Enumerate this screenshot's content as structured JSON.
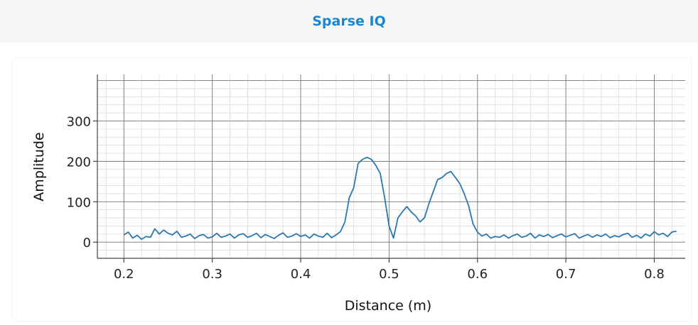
{
  "app": {
    "title": "Sparse IQ"
  },
  "chart_data": {
    "type": "line",
    "title": "",
    "xlabel": "Distance (m)",
    "ylabel": "Amplitude",
    "xlim": [
      0.17,
      0.835
    ],
    "ylim": [
      -40,
      415
    ],
    "xticks": [
      0.2,
      0.3,
      0.4,
      0.5,
      0.6,
      0.7,
      0.8
    ],
    "yticks": [
      0,
      100,
      200,
      300
    ],
    "xtick_labels": [
      "0.2",
      "0.3",
      "0.4",
      "0.5",
      "0.6",
      "0.7",
      "0.8"
    ],
    "ytick_labels": [
      "0",
      "100",
      "200",
      "300"
    ],
    "grid": true,
    "minor_grid": true,
    "line_color": "#2a78b0",
    "series": [
      {
        "x": [
          0.2,
          0.205,
          0.21,
          0.215,
          0.22,
          0.225,
          0.23,
          0.235,
          0.24,
          0.245,
          0.25,
          0.255,
          0.26,
          0.265,
          0.27,
          0.275,
          0.28,
          0.285,
          0.29,
          0.295,
          0.3,
          0.305,
          0.31,
          0.315,
          0.32,
          0.325,
          0.33,
          0.335,
          0.34,
          0.345,
          0.35,
          0.355,
          0.36,
          0.365,
          0.37,
          0.375,
          0.38,
          0.385,
          0.39,
          0.395,
          0.4,
          0.405,
          0.41,
          0.415,
          0.42,
          0.425,
          0.43,
          0.435,
          0.44,
          0.445,
          0.45,
          0.455,
          0.46,
          0.465,
          0.47,
          0.475,
          0.48,
          0.485,
          0.49,
          0.495,
          0.5,
          0.505,
          0.51,
          0.515,
          0.52,
          0.525,
          0.53,
          0.535,
          0.54,
          0.545,
          0.55,
          0.555,
          0.56,
          0.565,
          0.57,
          0.575,
          0.58,
          0.585,
          0.59,
          0.595,
          0.6,
          0.605,
          0.61,
          0.615,
          0.62,
          0.625,
          0.63,
          0.635,
          0.64,
          0.645,
          0.65,
          0.655,
          0.66,
          0.665,
          0.67,
          0.675,
          0.68,
          0.685,
          0.69,
          0.695,
          0.7,
          0.705,
          0.71,
          0.715,
          0.72,
          0.725,
          0.73,
          0.735,
          0.74,
          0.745,
          0.75,
          0.755,
          0.76,
          0.765,
          0.77,
          0.775,
          0.78,
          0.785,
          0.79,
          0.795,
          0.8,
          0.805,
          0.81,
          0.815,
          0.82,
          0.825
        ],
        "values": [
          18,
          25,
          10,
          17,
          7,
          14,
          12,
          33,
          20,
          30,
          22,
          18,
          27,
          12,
          15,
          20,
          9,
          16,
          19,
          10,
          13,
          22,
          12,
          15,
          20,
          10,
          18,
          21,
          12,
          16,
          22,
          11,
          19,
          14,
          9,
          17,
          23,
          12,
          15,
          21,
          14,
          18,
          10,
          20,
          15,
          12,
          22,
          11,
          18,
          26,
          50,
          110,
          135,
          195,
          205,
          210,
          205,
          190,
          170,
          110,
          40,
          10,
          60,
          75,
          88,
          75,
          65,
          50,
          60,
          95,
          125,
          155,
          160,
          170,
          175,
          160,
          145,
          120,
          90,
          45,
          25,
          15,
          20,
          10,
          14,
          12,
          18,
          10,
          16,
          20,
          12,
          15,
          22,
          10,
          18,
          14,
          19,
          11,
          16,
          20,
          13,
          17,
          21,
          10,
          15,
          19,
          12,
          18,
          14,
          20,
          11,
          16,
          13,
          19,
          22,
          12,
          17,
          10,
          20,
          15,
          26,
          18,
          22,
          14,
          25,
          27
        ]
      }
    ]
  }
}
